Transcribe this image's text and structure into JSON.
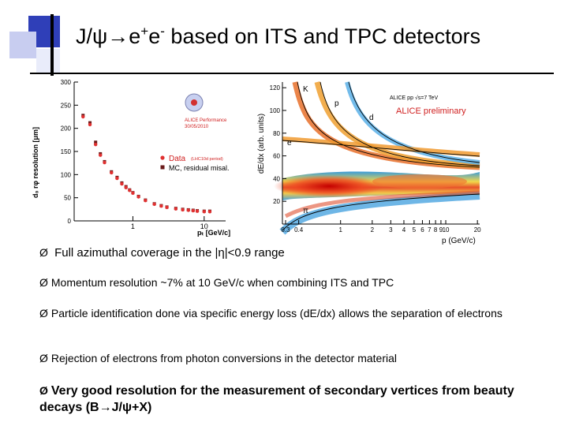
{
  "slide": {
    "title_pre": "J/ψ",
    "title_arrow": "→",
    "title_e1": "e",
    "title_sup1": "+",
    "title_e2": "e",
    "title_sup2": "-",
    "title_post": " based on ITS and TPC detectors"
  },
  "left_plot": {
    "ylabel": "d₀ rφ resolution [μm]",
    "xlabel": "pₜ [GeV/c]",
    "yticks": [
      "300",
      "250",
      "200",
      "150",
      "100",
      "50",
      "0"
    ],
    "xticks": [
      "1",
      "10"
    ],
    "badge_line1": "ALICE Performance",
    "badge_line2": "30/05/2010",
    "legend_data": "Data",
    "legend_data_note": "(LHC10d period)",
    "legend_mc": "MC, residual misal.",
    "colors": {
      "data": "#e03030",
      "mc": "#6a1a1a"
    }
  },
  "chart_data": {
    "type": "scatter",
    "ylabel": "d₀ rφ resolution [μm]",
    "xlabel": "pₜ [GeV/c]",
    "ylim": [
      0,
      300
    ],
    "x_scale": "log",
    "series": [
      {
        "name": "Data",
        "x": [
          0.2,
          0.25,
          0.3,
          0.35,
          0.4,
          0.5,
          0.6,
          0.7,
          0.8,
          0.9,
          1.0,
          1.2,
          1.5,
          2.0,
          2.5,
          3,
          4,
          5,
          6,
          7,
          8,
          10,
          12
        ],
        "y": [
          225,
          208,
          165,
          142,
          126,
          104,
          92,
          80,
          72,
          66,
          60,
          52,
          44,
          36,
          32,
          29,
          26,
          24,
          23,
          22,
          21,
          20,
          20
        ]
      },
      {
        "name": "MC, residual misal.",
        "x": [
          0.2,
          0.25,
          0.3,
          0.35,
          0.4,
          0.5,
          0.6,
          0.7,
          0.8,
          0.9,
          1.0,
          1.2,
          1.5,
          2.0,
          2.5,
          3,
          4,
          5,
          6,
          7,
          8,
          10,
          12
        ],
        "y": [
          228,
          212,
          170,
          145,
          128,
          106,
          94,
          82,
          74,
          67,
          61,
          53,
          45,
          37,
          33,
          30,
          27,
          25,
          24,
          23,
          22,
          21,
          21
        ]
      }
    ]
  },
  "right_plot": {
    "ylabel": "dE/dx (arb. units)",
    "xlabel": "p (GeV/c)",
    "yticks": [
      "120",
      "100",
      "80",
      "60",
      "40",
      "20"
    ],
    "xticks": [
      "0.3",
      "0.4",
      "1",
      "2",
      "3",
      "4",
      "5",
      "6",
      "7",
      "8",
      "9",
      "10",
      "20"
    ],
    "header": "ALICE pp √s=7 TeV",
    "preliminary": "ALICE preliminary",
    "band_labels": [
      "K",
      "p",
      "d",
      "e",
      "π"
    ]
  },
  "bullets": [
    {
      "marker": "Ø",
      "text": "Full azimuthal coverage in the |η|<0.9 range"
    },
    {
      "marker": "Ø",
      "text": "Momentum resolution ~7% at 10 GeV/c when combining ITS and TPC"
    },
    {
      "marker": "Ø",
      "text": "Particle identification done via specific energy loss (dE/dx) allows the separation of electrons"
    },
    {
      "marker": "Ø",
      "text": "Rejection of electrons from photon conversions in the detector material"
    },
    {
      "marker": "Ø",
      "text_pre": "Very good resolution for the measurement of secondary vertices from beauty decays (B",
      "arrow": "→",
      "text_post": "J/ψ+X)"
    }
  ]
}
